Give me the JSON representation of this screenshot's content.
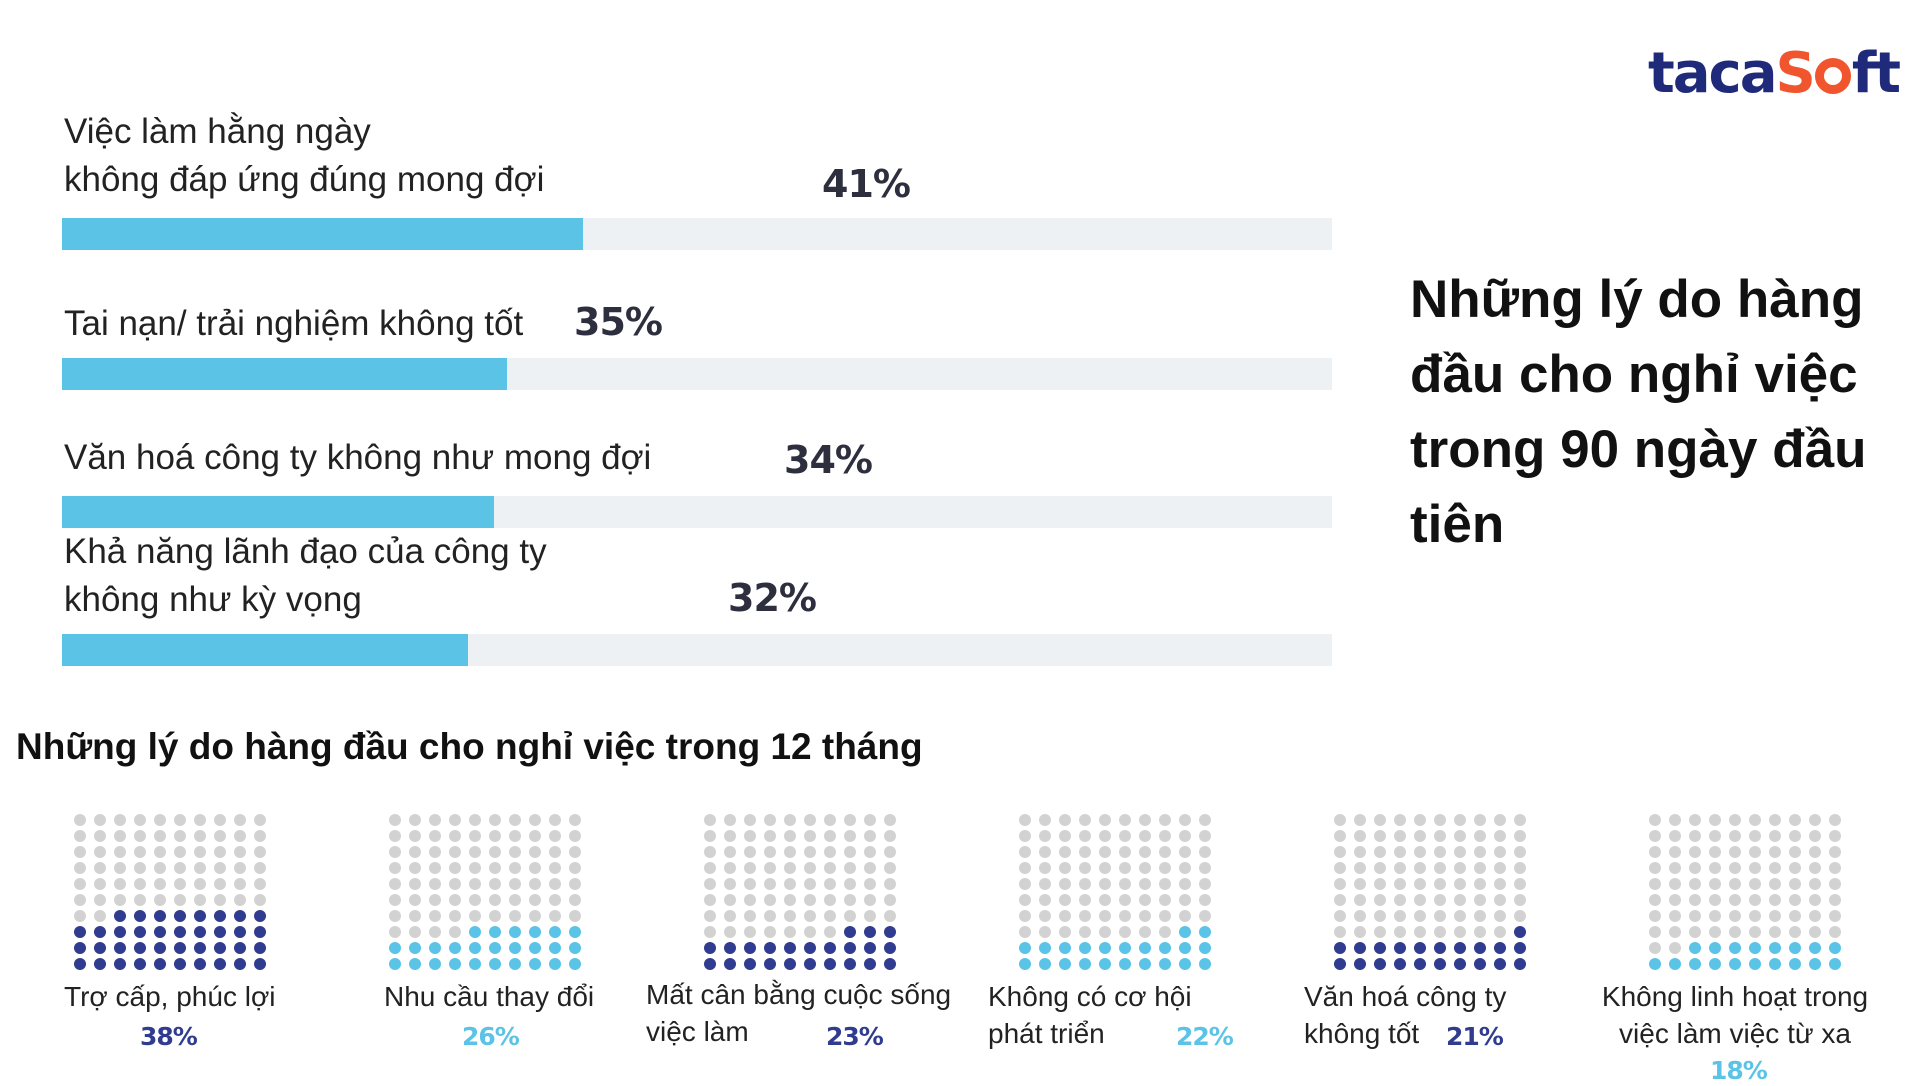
{
  "logo": {
    "part1": "taca",
    "part2": "S",
    "part3": "ft"
  },
  "side_title": "Những lý do hàng đầu cho nghỉ việc trong 90 ngày đầu tiên",
  "section_title": "Những lý do hàng đầu cho nghỉ việc trong 12 tháng",
  "colors": {
    "bar_fill": "#5bc4e6",
    "bar_track": "#edf1f4",
    "dot_dark": "#2f3c8f",
    "dot_light": "#5bc4e6",
    "dot_empty": "#d2d2d2",
    "logo_navy": "#1f2b7a",
    "logo_orange": "#f1552d"
  },
  "chart_data": [
    {
      "type": "bar",
      "orientation": "horizontal",
      "title": "Những lý do hàng đầu cho nghỉ việc trong 90 ngày đầu tiên",
      "xlim": [
        0,
        100
      ],
      "categories": [
        "Việc làm hằng ngày\nkhông đáp ứng đúng mong đợi",
        "Tai nạn/ trải nghiệm không tốt",
        "Văn hoá công ty không như mong đợi",
        "Khả năng lãnh đạo của công ty\nkhông như kỳ vọng"
      ],
      "values": [
        41,
        35,
        34,
        32
      ],
      "value_labels": [
        "41%",
        "35%",
        "34%",
        "32%"
      ]
    },
    {
      "type": "waffle",
      "title": "Những lý do hàng đầu cho nghỉ việc trong 12 tháng",
      "grid": [
        10,
        10
      ],
      "categories": [
        "Trợ cấp, phúc lợi",
        "Nhu cầu thay đổi",
        "Mất cân bằng cuộc sống\nviệc làm",
        "Không có cơ hội\nphát triển",
        "Văn hoá công ty\nkhông tốt",
        "Không linh hoạt trong\nviệc làm việc từ xa"
      ],
      "values": [
        38,
        26,
        23,
        22,
        21,
        18
      ],
      "value_labels": [
        "38%",
        "26%",
        "23%",
        "22%",
        "21%",
        "18%"
      ],
      "dot_colors": [
        "dark",
        "light",
        "dark",
        "light",
        "dark",
        "light"
      ]
    }
  ]
}
